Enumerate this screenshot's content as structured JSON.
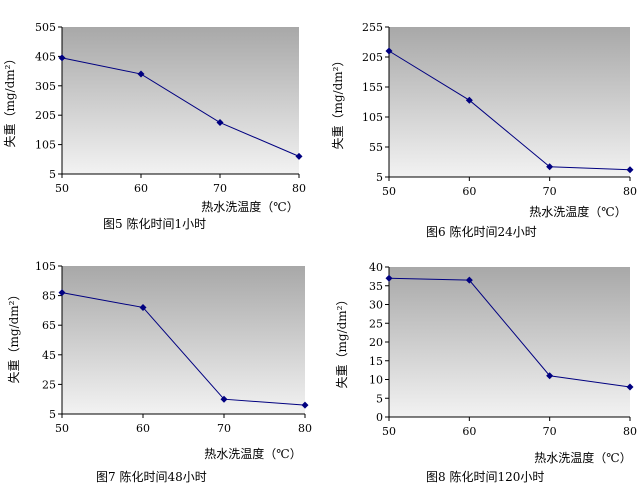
{
  "chart_data": [
    {
      "type": "line",
      "caption": "图5  陈化时间1小时",
      "xlabel": "热水洗温度（℃）",
      "ylabel": "失重（mg/dm²）",
      "x": [
        50,
        60,
        70,
        80
      ],
      "y": [
        400,
        345,
        180,
        65
      ],
      "yticks": [
        5,
        105,
        205,
        305,
        405,
        505
      ],
      "ylim": [
        5,
        505
      ],
      "line_color": "#000080",
      "plot_bg": "gradient gray"
    },
    {
      "type": "line",
      "caption": "图6  陈化时间24小时",
      "xlabel": "热水洗温度（℃）",
      "ylabel": "失重（mg/dm²）",
      "x": [
        50,
        60,
        70,
        80
      ],
      "y": [
        215,
        133,
        22,
        17
      ],
      "yticks": [
        5,
        55,
        105,
        155,
        205,
        255
      ],
      "ylim": [
        5,
        255
      ],
      "line_color": "#000080",
      "plot_bg": "gradient gray"
    },
    {
      "type": "line",
      "caption": "图7  陈化时间48小时",
      "xlabel": "热水洗温度（℃）",
      "ylabel": "失重（mg/dm²）",
      "x": [
        50,
        60,
        70,
        80
      ],
      "y": [
        87,
        77,
        15,
        11
      ],
      "yticks": [
        5,
        25,
        45,
        65,
        85,
        105
      ],
      "ylim": [
        5,
        105
      ],
      "line_color": "#000080",
      "plot_bg": "gradient gray"
    },
    {
      "type": "line",
      "caption": "图8  陈化时间120小时",
      "xlabel": "热水洗温度（℃）",
      "ylabel": "失重（mg/dm²）",
      "x": [
        50,
        60,
        70,
        80
      ],
      "y": [
        37,
        36.5,
        11,
        8
      ],
      "yticks": [
        0,
        5,
        10,
        15,
        20,
        25,
        30,
        35,
        40
      ],
      "ylim": [
        0,
        40
      ],
      "line_color": "#000080",
      "plot_bg": "gradient gray"
    }
  ]
}
